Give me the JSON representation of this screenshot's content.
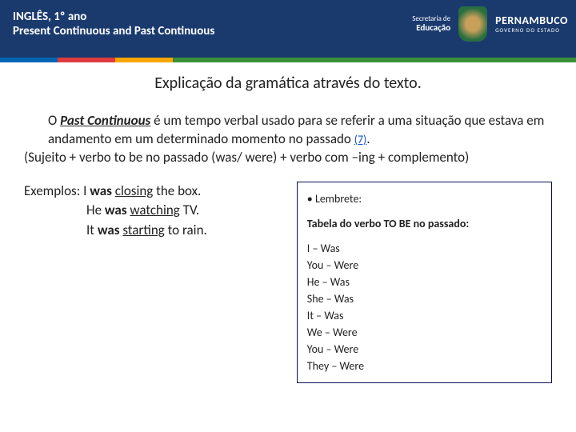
{
  "header": {
    "line1": "INGLÊS, 1º ano",
    "line2": "Present Continuous and Past Continuous",
    "secretaria_l1": "Secretaria de",
    "secretaria_l2": "Educação",
    "pe_l1": "PERNAMBUCO",
    "pe_l2": "GOVERNO DO ESTADO"
  },
  "title": "Explicação da gramática através do texto.",
  "intro": {
    "p1a": "O ",
    "p1b": "Past Continuous",
    "p1c": " é um tempo verbal usado para se referir a uma situação que estava em andamento em um determinado momento no passado ",
    "ref": "(7)",
    "p1d": ".",
    "p2": "(Sujeito + verbo to be no passado (was/ were) + verbo com –ing + complemento)"
  },
  "examples": {
    "lead": "Exemplos: ",
    "e1a": "I ",
    "e1b": "was",
    "e1c": " ",
    "e1d": "closing",
    "e1e": " the box.",
    "e2a": "He ",
    "e2b": "was",
    "e2c": " ",
    "e2d": "watching",
    "e2e": " TV.",
    "e3a": "It ",
    "e3b": "was",
    "e3c": " ",
    "e3d": "starting",
    "e3e": " to rain."
  },
  "tablebox": {
    "bullet": "• ",
    "lembrete": "Lembrete:",
    "title": "Tabela do verbo TO BE no passado:",
    "rows": [
      "I – Was",
      "You – Were",
      "He – Was",
      "She – Was",
      "It – Was",
      "We – Were",
      "You – Were",
      "They – Were"
    ]
  }
}
